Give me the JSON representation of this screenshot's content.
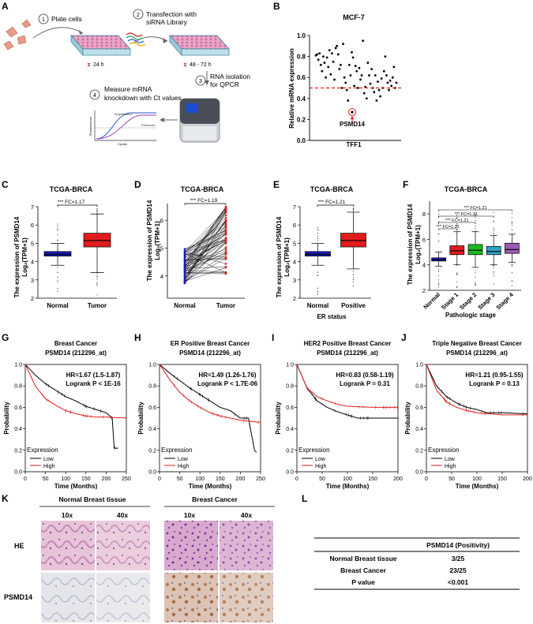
{
  "panels": {
    "a": {
      "letter": "A",
      "steps": [
        {
          "num": "1",
          "label": "Plate cells"
        },
        {
          "num": "2",
          "label": "Transfection with",
          "label2": "siRNA Library"
        },
        {
          "num": "3",
          "label": "RNA isolation",
          "label2": "for QPCR"
        },
        {
          "num": "4",
          "label": "Measure mRNA",
          "label2": "knockdown with Ct values"
        }
      ],
      "time1": "24 h",
      "time2": "48 - 72 h",
      "qpcr_plot": {
        "ylabel": "Fluorescence",
        "xlabel": "Cycles",
        "amp_label": "Amplification",
        "thr_label": "Threshold"
      },
      "colors": {
        "plate": "#e9a4c6",
        "plate_edge": "#3e8aa0",
        "cell": "#e89a86",
        "arrow": "#666666"
      }
    },
    "b": {
      "letter": "B",
      "title": "MCF-7",
      "xlabel": "TFF1",
      "ylabel": "Relative mRNA expression",
      "ticks": [
        "0.0",
        "0.2",
        "0.4",
        "0.6",
        "0.8",
        "1.0"
      ],
      "highlight": "PSMD14",
      "threshold": 0.5,
      "highlight_value": 0.27,
      "threshold_color": "#e0201c"
    },
    "c": {
      "letter": "C",
      "title": "TCGA-BRCA",
      "sig": "*** FC=1.17",
      "ylabel1": "The expression of PSMD14",
      "ylabel2": "Log₂(TPM+1)",
      "ticks": [
        "2",
        "3",
        "4",
        "5",
        "6",
        "7"
      ],
      "cats": [
        "Normal",
        "Tumor"
      ]
    },
    "d": {
      "letter": "D",
      "title": "TCGA-BRCA",
      "sig": "*** FC=1.19",
      "ylabel1": "The expression of PSMD14",
      "ylabel2": "Log₂(TPM+1)",
      "ticks": [
        "4",
        "5",
        "6"
      ],
      "cats": [
        "Normal",
        "Tumor"
      ]
    },
    "e": {
      "letter": "E",
      "title": "TCGA-BRCA",
      "sig": "*** FC=1.21",
      "ylabel1": "The expression of PSMD14",
      "ylabel2": "Log₂(TPM+1)",
      "ticks": [
        "2",
        "3",
        "4",
        "5",
        "6",
        "7"
      ],
      "cats": [
        "Normal",
        "Positive"
      ],
      "xlabel": "ER status"
    },
    "f": {
      "letter": "F",
      "title": "TCGA-BRCA",
      "ylabel1": "The expression of PSMD14",
      "ylabel2": "Log₂(TPM+1)",
      "ticks": [
        "2",
        "4",
        "6",
        "8"
      ],
      "cats": [
        "Normal",
        "Stage 1",
        "Stage 2",
        "Stage 3",
        "Stage 4"
      ],
      "xlabel": "Pathologic stage",
      "sigs": [
        "*** FC=1.21",
        "*** FC=1.21",
        "*** FC=1.21",
        "*** FC=1.21"
      ],
      "colors": [
        "#1a1ab8",
        "#e01c1c",
        "#1fb81f",
        "#2fa3c6",
        "#9a5bb6"
      ]
    },
    "g": {
      "letter": "G",
      "title1": "Breast Cancer",
      "title2": "PSMD14 (212296_at)",
      "stat1": "HR=1.67 (1.5-1.87)",
      "stat2": "Logrank P < 1E-16",
      "xticks": [
        "0",
        "50",
        "100",
        "150",
        "200",
        "250"
      ],
      "yticks": [
        "0.0",
        "0.2",
        "0.4",
        "0.6",
        "0.8",
        "1.0"
      ],
      "xlabel": "Time (Months)",
      "ylabel": "Probability",
      "legend_title": "Expression",
      "legend": [
        "Low",
        "High"
      ]
    },
    "h": {
      "letter": "H",
      "title1": "ER Positive Breast Cancer",
      "title2": "PSMD14 (212296_at)",
      "stat1": "HR=1.49 (1.26-1.76)",
      "stat2": "Logrank P < 1.7E-06",
      "xticks": [
        "0",
        "50",
        "100",
        "150",
        "200",
        "250"
      ],
      "yticks": [
        "0.0",
        "0.2",
        "0.4",
        "0.6",
        "0.8",
        "1.0"
      ],
      "xlabel": "Time (Months)",
      "ylabel": "Probability",
      "legend_title": "Expression",
      "legend": [
        "Low",
        "High"
      ]
    },
    "i": {
      "letter": "I",
      "title1": "HER2 Positive Breast Cancer",
      "title2": "PSMD14 (212296_at)",
      "stat1": "HR=0.83 (0.58-1.19)",
      "stat2": "Logrank P = 0.31",
      "xticks": [
        "0",
        "50",
        "100",
        "150",
        "200"
      ],
      "yticks": [
        "0.0",
        "0.2",
        "0.4",
        "0.6",
        "0.8",
        "1.0"
      ],
      "xlabel": "Time (Months)",
      "ylabel": "Probability",
      "legend_title": "Expression",
      "legend": [
        "Low",
        "High"
      ]
    },
    "j": {
      "letter": "J",
      "title1": "Triple Negative Breast Cancer",
      "title2": "PSMD14 (212296_at)",
      "stat1": "HR=1.21 (0.95-1.55)",
      "stat2": "Logrank P = 0.13",
      "xticks": [
        "0",
        "50",
        "100",
        "150",
        "200"
      ],
      "yticks": [
        "0.0",
        "0.2",
        "0.4",
        "0.6",
        "0.8",
        "1.0"
      ],
      "xlabel": "Time (Months)",
      "ylabel": "Probability",
      "legend_title": "Expression",
      "legend": [
        "Low",
        "High"
      ]
    },
    "k": {
      "letter": "K",
      "group1": "Normal Breast tissue",
      "group2": "Breast Cancer",
      "mags": [
        "10x",
        "40x",
        "10x",
        "40x"
      ],
      "rows": [
        "HE",
        "PSMD14"
      ]
    },
    "l": {
      "letter": "L",
      "header": "PSMD14 (Positivity)",
      "rows": [
        {
          "label": "Normal Breast tissue",
          "value": "3/25"
        },
        {
          "label": "Breast Cancer",
          "value": "23/25"
        },
        {
          "label": "P value",
          "value": "<0.001"
        }
      ]
    }
  },
  "chart_data": [
    {
      "panel": "B",
      "type": "scatter",
      "title": "MCF-7",
      "xlabel": "TFF1",
      "ylabel": "Relative mRNA expression",
      "ylim": [
        0,
        1.0
      ],
      "y": [
        0.81,
        0.82,
        0.77,
        0.83,
        0.72,
        0.66,
        0.8,
        0.74,
        0.6,
        0.79,
        0.7,
        0.86,
        0.63,
        0.83,
        0.75,
        0.58,
        0.88,
        0.9,
        0.82,
        0.68,
        0.72,
        0.5,
        0.92,
        0.6,
        0.55,
        0.48,
        0.38,
        0.72,
        0.62,
        0.84,
        0.79,
        0.52,
        0.71,
        0.66,
        0.5,
        0.69,
        0.58,
        0.62,
        0.95,
        0.45,
        0.51,
        0.4,
        0.74,
        0.62,
        0.54,
        0.68,
        0.5,
        0.46,
        0.62,
        0.38,
        0.56,
        0.48,
        0.42,
        0.59,
        0.5,
        0.66,
        0.8,
        0.62,
        0.55,
        0.48,
        0.57,
        0.52,
        0.6,
        0.7,
        0.5,
        0.55
      ],
      "threshold": 0.5,
      "highlight": {
        "label": "PSMD14",
        "y": 0.27
      }
    },
    {
      "panel": "C",
      "type": "box",
      "title": "TCGA-BRCA",
      "categories": [
        "Normal",
        "Tumor"
      ],
      "ylim": [
        2,
        7
      ],
      "stats": [
        {
          "min": 3.8,
          "q1": 4.3,
          "median": 4.4,
          "q3": 4.55,
          "max": 5.0
        },
        {
          "min": 3.4,
          "q1": 4.8,
          "median": 5.15,
          "q3": 5.55,
          "max": 6.6
        }
      ]
    },
    {
      "panel": "D",
      "type": "paired",
      "title": "TCGA-BRCA",
      "categories": [
        "Normal",
        "Tumor"
      ],
      "ylim": [
        3.2,
        6.6
      ],
      "normal_range": [
        3.7,
        5.0
      ],
      "tumor_range": [
        3.4,
        6.5
      ]
    },
    {
      "panel": "E",
      "type": "box",
      "title": "TCGA-BRCA",
      "categories": [
        "Normal",
        "Positive"
      ],
      "ylim": [
        2,
        7
      ],
      "stats": [
        {
          "min": 3.8,
          "q1": 4.3,
          "median": 4.4,
          "q3": 4.55,
          "max": 5.0
        },
        {
          "min": 3.6,
          "q1": 4.8,
          "median": 5.15,
          "q3": 5.55,
          "max": 6.7
        }
      ]
    },
    {
      "panel": "F",
      "type": "box",
      "title": "TCGA-BRCA",
      "categories": [
        "Normal",
        "Stage 1",
        "Stage 2",
        "Stage 3",
        "Stage 4"
      ],
      "ylim": [
        2,
        9
      ],
      "stats": [
        {
          "min": 3.9,
          "q1": 4.3,
          "median": 4.4,
          "q3": 4.55,
          "max": 5.0
        },
        {
          "min": 4.0,
          "q1": 4.8,
          "median": 5.1,
          "q3": 5.5,
          "max": 6.6
        },
        {
          "min": 3.8,
          "q1": 4.8,
          "median": 5.15,
          "q3": 5.6,
          "max": 6.6
        },
        {
          "min": 4.0,
          "q1": 4.8,
          "median": 5.05,
          "q3": 5.45,
          "max": 6.3
        },
        {
          "min": 4.2,
          "q1": 4.9,
          "median": 5.2,
          "q3": 5.7,
          "max": 6.4
        }
      ]
    },
    {
      "panel": "G",
      "type": "line",
      "xlabel": "Time (Months)",
      "ylabel": "Probability",
      "xlim": [
        0,
        250
      ],
      "ylim": [
        0,
        1
      ],
      "series": [
        {
          "name": "Low",
          "x": [
            0,
            25,
            50,
            75,
            100,
            125,
            150,
            175,
            200,
            215,
            220,
            230
          ],
          "y": [
            1,
            0.9,
            0.82,
            0.76,
            0.7,
            0.66,
            0.61,
            0.58,
            0.55,
            0.5,
            0.22,
            0.22
          ]
        },
        {
          "name": "High",
          "x": [
            0,
            25,
            50,
            75,
            100,
            125,
            150,
            175,
            200,
            250
          ],
          "y": [
            1,
            0.8,
            0.68,
            0.62,
            0.57,
            0.54,
            0.52,
            0.51,
            0.51,
            0.5
          ]
        }
      ]
    },
    {
      "panel": "H",
      "type": "line",
      "xlabel": "Time (Months)",
      "ylabel": "Probability",
      "xlim": [
        0,
        250
      ],
      "ylim": [
        0,
        1
      ],
      "series": [
        {
          "name": "Low",
          "x": [
            0,
            25,
            50,
            75,
            100,
            125,
            150,
            175,
            200,
            220,
            235,
            240
          ],
          "y": [
            1,
            0.92,
            0.85,
            0.78,
            0.72,
            0.66,
            0.6,
            0.57,
            0.5,
            0.5,
            0.2,
            0.18
          ]
        },
        {
          "name": "High",
          "x": [
            0,
            25,
            50,
            75,
            100,
            125,
            150,
            175,
            200,
            250
          ],
          "y": [
            1,
            0.86,
            0.74,
            0.66,
            0.6,
            0.55,
            0.52,
            0.5,
            0.48,
            0.46
          ]
        }
      ]
    },
    {
      "panel": "I",
      "type": "line",
      "xlabel": "Time (Months)",
      "ylabel": "Probability",
      "xlim": [
        0,
        200
      ],
      "ylim": [
        0,
        1
      ],
      "series": [
        {
          "name": "Low",
          "x": [
            0,
            20,
            40,
            60,
            80,
            100,
            120,
            150,
            200
          ],
          "y": [
            1,
            0.78,
            0.66,
            0.6,
            0.56,
            0.53,
            0.5,
            0.5,
            0.5
          ]
        },
        {
          "name": "High",
          "x": [
            0,
            20,
            40,
            60,
            80,
            100,
            150,
            200
          ],
          "y": [
            1,
            0.78,
            0.7,
            0.66,
            0.63,
            0.61,
            0.6,
            0.6
          ]
        }
      ]
    },
    {
      "panel": "J",
      "type": "line",
      "xlabel": "Time (Months)",
      "ylabel": "Probability",
      "xlim": [
        0,
        200
      ],
      "ylim": [
        0,
        1
      ],
      "series": [
        {
          "name": "Low",
          "x": [
            0,
            20,
            40,
            60,
            80,
            100,
            120,
            150,
            200
          ],
          "y": [
            1,
            0.8,
            0.7,
            0.64,
            0.6,
            0.58,
            0.55,
            0.55,
            0.54
          ]
        },
        {
          "name": "High",
          "x": [
            0,
            20,
            40,
            60,
            80,
            100,
            150,
            200
          ],
          "y": [
            1,
            0.76,
            0.65,
            0.6,
            0.57,
            0.55,
            0.53,
            0.53
          ]
        }
      ]
    }
  ]
}
